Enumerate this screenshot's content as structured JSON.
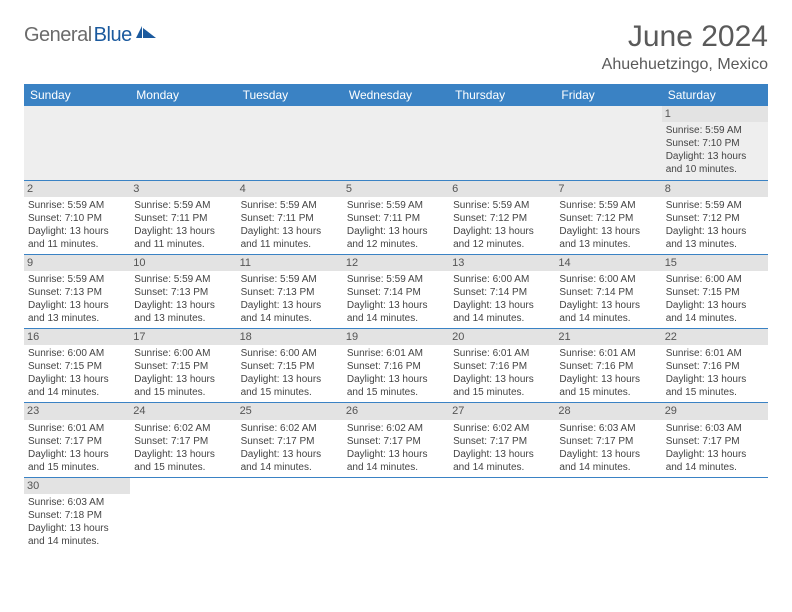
{
  "logo": {
    "gray": "General",
    "blue": "Blue"
  },
  "title": "June 2024",
  "location": "Ahuehuetzingo, Mexico",
  "colors": {
    "header_bg": "#3a82c4",
    "header_text": "#ffffff",
    "daynum_bg": "#e3e3e3",
    "border": "#3a82c4",
    "title_color": "#5a5a5a",
    "logo_gray": "#6b6b6b",
    "logo_blue": "#1b5a9e"
  },
  "weekdays": [
    "Sunday",
    "Monday",
    "Tuesday",
    "Wednesday",
    "Thursday",
    "Friday",
    "Saturday"
  ],
  "weeks": [
    [
      null,
      null,
      null,
      null,
      null,
      null,
      {
        "d": "1",
        "sr": "Sunrise: 5:59 AM",
        "ss": "Sunset: 7:10 PM",
        "dl1": "Daylight: 13 hours",
        "dl2": "and 10 minutes."
      }
    ],
    [
      {
        "d": "2",
        "sr": "Sunrise: 5:59 AM",
        "ss": "Sunset: 7:10 PM",
        "dl1": "Daylight: 13 hours",
        "dl2": "and 11 minutes."
      },
      {
        "d": "3",
        "sr": "Sunrise: 5:59 AM",
        "ss": "Sunset: 7:11 PM",
        "dl1": "Daylight: 13 hours",
        "dl2": "and 11 minutes."
      },
      {
        "d": "4",
        "sr": "Sunrise: 5:59 AM",
        "ss": "Sunset: 7:11 PM",
        "dl1": "Daylight: 13 hours",
        "dl2": "and 11 minutes."
      },
      {
        "d": "5",
        "sr": "Sunrise: 5:59 AM",
        "ss": "Sunset: 7:11 PM",
        "dl1": "Daylight: 13 hours",
        "dl2": "and 12 minutes."
      },
      {
        "d": "6",
        "sr": "Sunrise: 5:59 AM",
        "ss": "Sunset: 7:12 PM",
        "dl1": "Daylight: 13 hours",
        "dl2": "and 12 minutes."
      },
      {
        "d": "7",
        "sr": "Sunrise: 5:59 AM",
        "ss": "Sunset: 7:12 PM",
        "dl1": "Daylight: 13 hours",
        "dl2": "and 13 minutes."
      },
      {
        "d": "8",
        "sr": "Sunrise: 5:59 AM",
        "ss": "Sunset: 7:12 PM",
        "dl1": "Daylight: 13 hours",
        "dl2": "and 13 minutes."
      }
    ],
    [
      {
        "d": "9",
        "sr": "Sunrise: 5:59 AM",
        "ss": "Sunset: 7:13 PM",
        "dl1": "Daylight: 13 hours",
        "dl2": "and 13 minutes."
      },
      {
        "d": "10",
        "sr": "Sunrise: 5:59 AM",
        "ss": "Sunset: 7:13 PM",
        "dl1": "Daylight: 13 hours",
        "dl2": "and 13 minutes."
      },
      {
        "d": "11",
        "sr": "Sunrise: 5:59 AM",
        "ss": "Sunset: 7:13 PM",
        "dl1": "Daylight: 13 hours",
        "dl2": "and 14 minutes."
      },
      {
        "d": "12",
        "sr": "Sunrise: 5:59 AM",
        "ss": "Sunset: 7:14 PM",
        "dl1": "Daylight: 13 hours",
        "dl2": "and 14 minutes."
      },
      {
        "d": "13",
        "sr": "Sunrise: 6:00 AM",
        "ss": "Sunset: 7:14 PM",
        "dl1": "Daylight: 13 hours",
        "dl2": "and 14 minutes."
      },
      {
        "d": "14",
        "sr": "Sunrise: 6:00 AM",
        "ss": "Sunset: 7:14 PM",
        "dl1": "Daylight: 13 hours",
        "dl2": "and 14 minutes."
      },
      {
        "d": "15",
        "sr": "Sunrise: 6:00 AM",
        "ss": "Sunset: 7:15 PM",
        "dl1": "Daylight: 13 hours",
        "dl2": "and 14 minutes."
      }
    ],
    [
      {
        "d": "16",
        "sr": "Sunrise: 6:00 AM",
        "ss": "Sunset: 7:15 PM",
        "dl1": "Daylight: 13 hours",
        "dl2": "and 14 minutes."
      },
      {
        "d": "17",
        "sr": "Sunrise: 6:00 AM",
        "ss": "Sunset: 7:15 PM",
        "dl1": "Daylight: 13 hours",
        "dl2": "and 15 minutes."
      },
      {
        "d": "18",
        "sr": "Sunrise: 6:00 AM",
        "ss": "Sunset: 7:15 PM",
        "dl1": "Daylight: 13 hours",
        "dl2": "and 15 minutes."
      },
      {
        "d": "19",
        "sr": "Sunrise: 6:01 AM",
        "ss": "Sunset: 7:16 PM",
        "dl1": "Daylight: 13 hours",
        "dl2": "and 15 minutes."
      },
      {
        "d": "20",
        "sr": "Sunrise: 6:01 AM",
        "ss": "Sunset: 7:16 PM",
        "dl1": "Daylight: 13 hours",
        "dl2": "and 15 minutes."
      },
      {
        "d": "21",
        "sr": "Sunrise: 6:01 AM",
        "ss": "Sunset: 7:16 PM",
        "dl1": "Daylight: 13 hours",
        "dl2": "and 15 minutes."
      },
      {
        "d": "22",
        "sr": "Sunrise: 6:01 AM",
        "ss": "Sunset: 7:16 PM",
        "dl1": "Daylight: 13 hours",
        "dl2": "and 15 minutes."
      }
    ],
    [
      {
        "d": "23",
        "sr": "Sunrise: 6:01 AM",
        "ss": "Sunset: 7:17 PM",
        "dl1": "Daylight: 13 hours",
        "dl2": "and 15 minutes."
      },
      {
        "d": "24",
        "sr": "Sunrise: 6:02 AM",
        "ss": "Sunset: 7:17 PM",
        "dl1": "Daylight: 13 hours",
        "dl2": "and 15 minutes."
      },
      {
        "d": "25",
        "sr": "Sunrise: 6:02 AM",
        "ss": "Sunset: 7:17 PM",
        "dl1": "Daylight: 13 hours",
        "dl2": "and 14 minutes."
      },
      {
        "d": "26",
        "sr": "Sunrise: 6:02 AM",
        "ss": "Sunset: 7:17 PM",
        "dl1": "Daylight: 13 hours",
        "dl2": "and 14 minutes."
      },
      {
        "d": "27",
        "sr": "Sunrise: 6:02 AM",
        "ss": "Sunset: 7:17 PM",
        "dl1": "Daylight: 13 hours",
        "dl2": "and 14 minutes."
      },
      {
        "d": "28",
        "sr": "Sunrise: 6:03 AM",
        "ss": "Sunset: 7:17 PM",
        "dl1": "Daylight: 13 hours",
        "dl2": "and 14 minutes."
      },
      {
        "d": "29",
        "sr": "Sunrise: 6:03 AM",
        "ss": "Sunset: 7:17 PM",
        "dl1": "Daylight: 13 hours",
        "dl2": "and 14 minutes."
      }
    ],
    [
      {
        "d": "30",
        "sr": "Sunrise: 6:03 AM",
        "ss": "Sunset: 7:18 PM",
        "dl1": "Daylight: 13 hours",
        "dl2": "and 14 minutes."
      },
      null,
      null,
      null,
      null,
      null,
      null
    ]
  ]
}
